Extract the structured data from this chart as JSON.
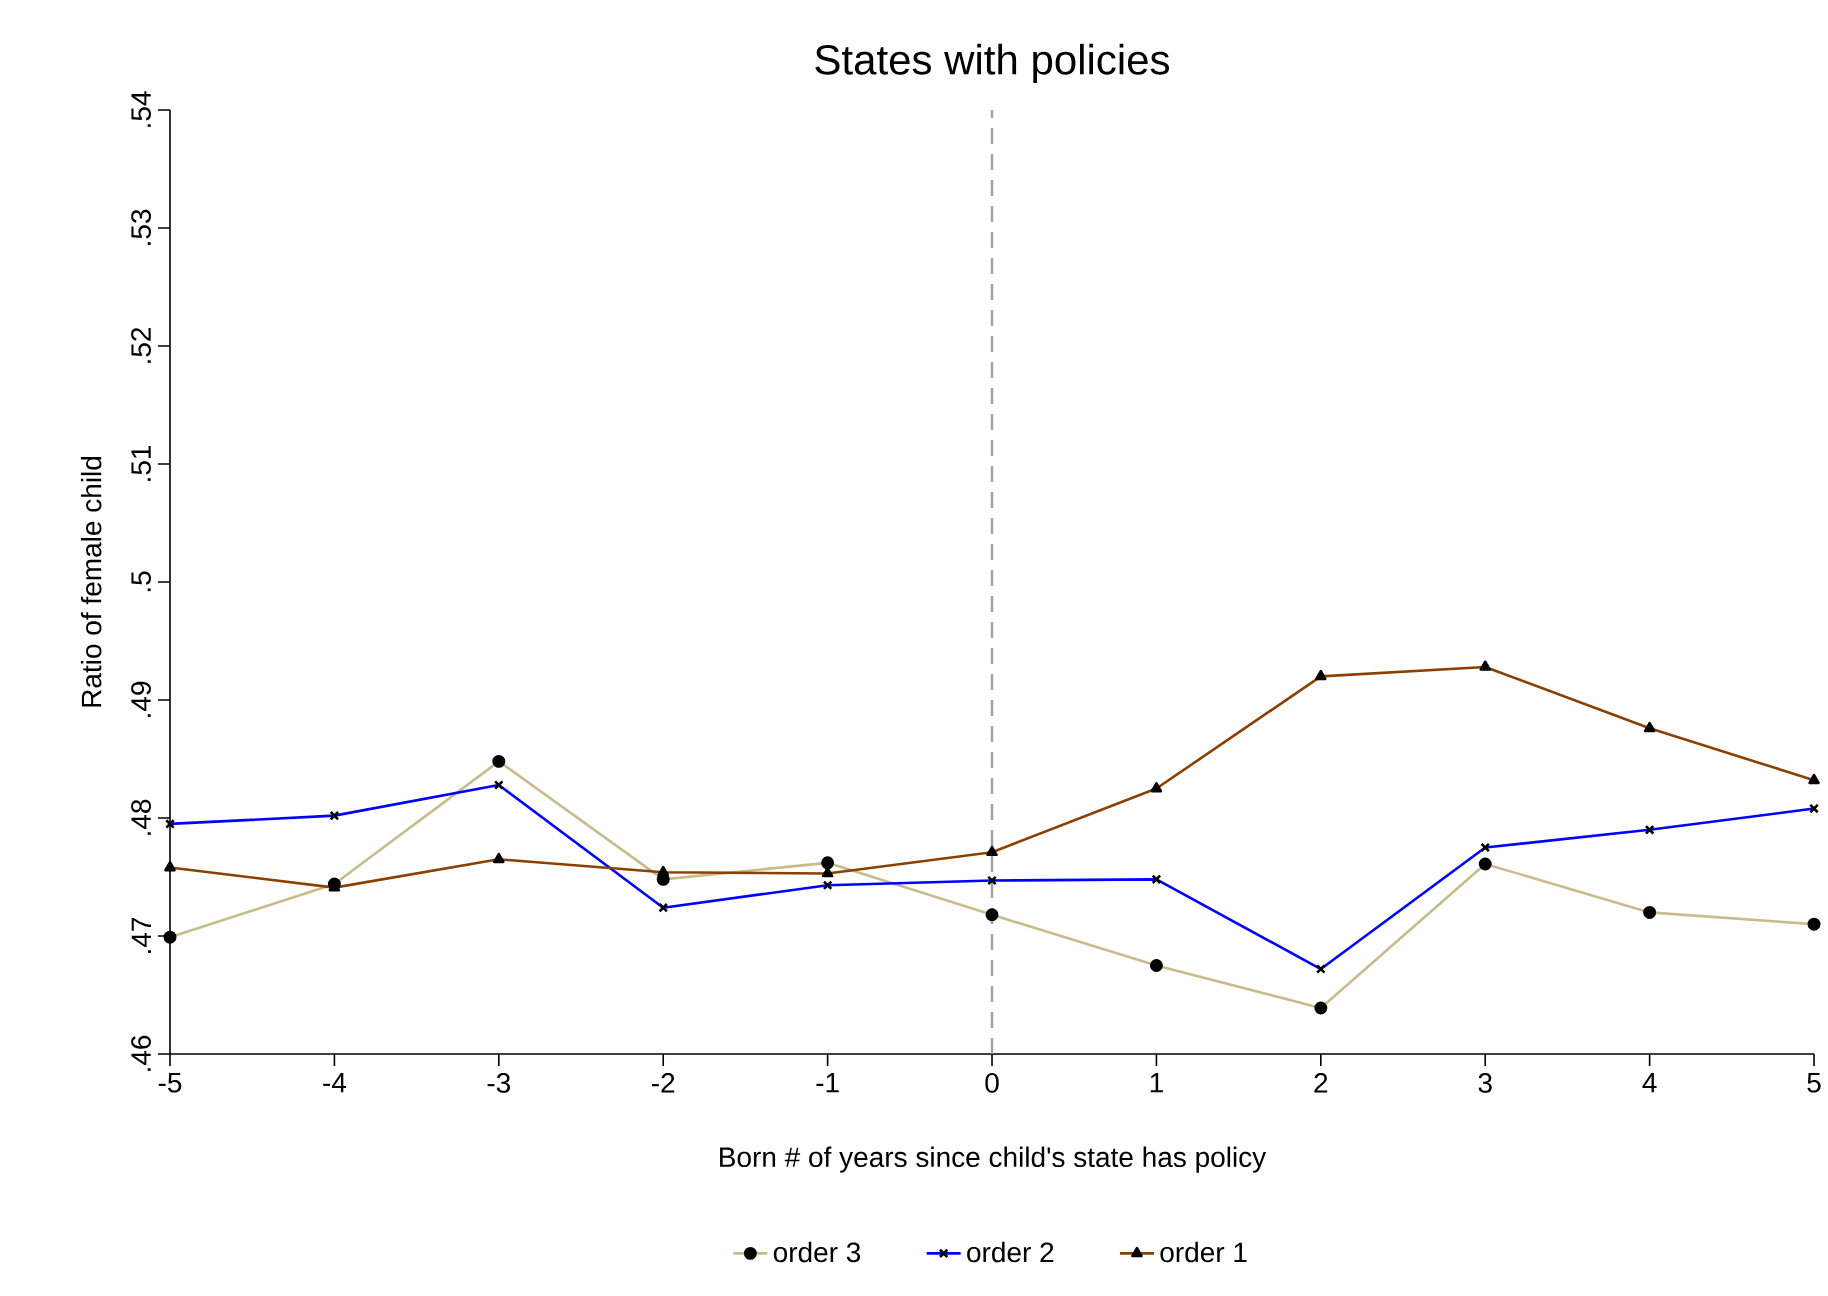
{
  "chart_data": {
    "type": "line",
    "title": "States with policies",
    "xlabel": "Born # of years since child's state has policy",
    "ylabel": "Ratio of female child",
    "x": [
      -5,
      -4,
      -3,
      -2,
      -1,
      0,
      1,
      2,
      3,
      4,
      5
    ],
    "xlim": [
      -5,
      5
    ],
    "xticks": [
      -5,
      -4,
      -3,
      -2,
      -1,
      0,
      1,
      2,
      3,
      4,
      5
    ],
    "ylim": [
      0.46,
      0.54
    ],
    "yticks": [
      {
        "value": 0.46,
        "label": ".46"
      },
      {
        "value": 0.47,
        "label": ".47"
      },
      {
        "value": 0.48,
        "label": ".48"
      },
      {
        "value": 0.49,
        "label": ".49"
      },
      {
        "value": 0.5,
        "label": ".5"
      },
      {
        "value": 0.51,
        "label": ".51"
      },
      {
        "value": 0.52,
        "label": ".52"
      },
      {
        "value": 0.53,
        "label": ".53"
      },
      {
        "value": 0.54,
        "label": ".54"
      }
    ],
    "series": [
      {
        "name": "order 3",
        "color": "#c9bc8c",
        "marker": "circle",
        "values": [
          0.4699,
          0.4744,
          0.4848,
          0.4748,
          0.4762,
          0.4718,
          0.4675,
          0.4639,
          0.4761,
          0.472,
          0.471
        ]
      },
      {
        "name": "order 2",
        "color": "#0000ff",
        "marker": "cross",
        "values": [
          0.4795,
          0.4802,
          0.4828,
          0.4724,
          0.4743,
          0.4747,
          0.4748,
          0.4672,
          0.4775,
          0.479,
          0.4808
        ]
      },
      {
        "name": "order 1",
        "color": "#8b4000",
        "marker": "triangle",
        "values": [
          0.4758,
          0.4741,
          0.4765,
          0.4754,
          0.4753,
          0.4771,
          0.4825,
          0.492,
          0.4928,
          0.4876,
          0.4832
        ]
      }
    ],
    "ref_lines": [
      {
        "axis": "x",
        "value": 0,
        "color": "#a0a0a0",
        "line_style": "dashed"
      }
    ],
    "grid": false,
    "legend": "bottom",
    "line_style": "solid"
  }
}
